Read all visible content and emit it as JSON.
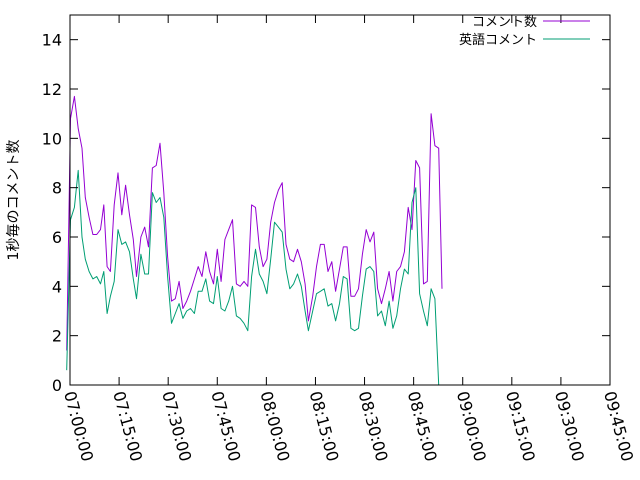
{
  "chart_data": {
    "type": "line",
    "title": "",
    "ylabel": "1秒毎のコメント数",
    "xlabel": "",
    "ylim": [
      0,
      15
    ],
    "yticks": [
      0,
      2,
      4,
      6,
      8,
      10,
      12,
      14
    ],
    "xlim": [
      "07:00:00",
      "09:45:00"
    ],
    "xticks": [
      "07:00:00",
      "07:15:00",
      "07:30:00",
      "07:45:00",
      "08:00:00",
      "08:15:00",
      "08:30:00",
      "08:45:00",
      "09:00:00",
      "09:15:00",
      "09:30:00",
      "09:45:00"
    ],
    "legend_position": "top-right",
    "grid": false,
    "series": [
      {
        "name": "コメント数",
        "color": "#9400d3",
        "points": [
          [
            "06:59:00",
            1.4
          ],
          [
            "07:00:10",
            10.8
          ],
          [
            "07:01:20",
            11.7
          ],
          [
            "07:02:30",
            10.4
          ],
          [
            "07:03:40",
            9.6
          ],
          [
            "07:04:40",
            7.6
          ],
          [
            "07:05:50",
            6.8
          ],
          [
            "07:07:00",
            6.1
          ],
          [
            "07:08:10",
            6.1
          ],
          [
            "07:09:20",
            6.3
          ],
          [
            "07:10:20",
            7.3
          ],
          [
            "07:11:20",
            4.8
          ],
          [
            "07:12:20",
            4.6
          ],
          [
            "07:13:30",
            7.3
          ],
          [
            "07:14:40",
            8.6
          ],
          [
            "07:15:50",
            6.9
          ],
          [
            "07:17:00",
            8.1
          ],
          [
            "07:18:10",
            6.9
          ],
          [
            "07:19:20",
            5.9
          ],
          [
            "07:20:20",
            4.4
          ],
          [
            "07:21:40",
            6.0
          ],
          [
            "07:22:50",
            6.4
          ],
          [
            "07:24:00",
            5.6
          ],
          [
            "07:25:10",
            8.8
          ],
          [
            "07:26:20",
            8.9
          ],
          [
            "07:27:30",
            9.8
          ],
          [
            "07:28:40",
            7.8
          ],
          [
            "07:29:50",
            5.2
          ],
          [
            "07:31:00",
            3.4
          ],
          [
            "07:32:10",
            3.5
          ],
          [
            "07:33:20",
            4.2
          ],
          [
            "07:34:30",
            3.1
          ],
          [
            "07:35:40",
            3.4
          ],
          [
            "07:36:50",
            3.8
          ],
          [
            "07:38:00",
            4.3
          ],
          [
            "07:39:10",
            4.8
          ],
          [
            "07:40:20",
            4.4
          ],
          [
            "07:41:30",
            5.4
          ],
          [
            "07:42:40",
            4.6
          ],
          [
            "07:43:50",
            4.1
          ],
          [
            "07:45:00",
            5.5
          ],
          [
            "07:46:10",
            4.2
          ],
          [
            "07:47:20",
            5.9
          ],
          [
            "07:48:30",
            6.3
          ],
          [
            "07:49:40",
            6.7
          ],
          [
            "07:50:50",
            4.1
          ],
          [
            "07:52:00",
            4.0
          ],
          [
            "07:53:10",
            4.2
          ],
          [
            "07:54:20",
            4.0
          ],
          [
            "07:55:30",
            7.3
          ],
          [
            "07:56:40",
            7.2
          ],
          [
            "07:57:50",
            5.6
          ],
          [
            "07:59:00",
            4.8
          ],
          [
            "08:00:10",
            5.1
          ],
          [
            "08:01:20",
            6.6
          ],
          [
            "08:02:30",
            7.4
          ],
          [
            "08:03:40",
            7.9
          ],
          [
            "08:04:50",
            8.2
          ],
          [
            "08:06:00",
            5.7
          ],
          [
            "08:07:10",
            5.1
          ],
          [
            "08:08:20",
            5.0
          ],
          [
            "08:09:30",
            5.5
          ],
          [
            "08:10:40",
            5.0
          ],
          [
            "08:11:50",
            4.1
          ],
          [
            "08:12:50",
            2.6
          ],
          [
            "08:14:10",
            3.6
          ],
          [
            "08:15:20",
            4.8
          ],
          [
            "08:16:30",
            5.7
          ],
          [
            "08:17:40",
            5.7
          ],
          [
            "08:18:50",
            4.6
          ],
          [
            "08:20:00",
            5.0
          ],
          [
            "08:21:10",
            3.8
          ],
          [
            "08:22:20",
            4.7
          ],
          [
            "08:23:30",
            5.6
          ],
          [
            "08:24:40",
            5.6
          ],
          [
            "08:25:50",
            3.6
          ],
          [
            "08:27:00",
            3.6
          ],
          [
            "08:28:10",
            3.9
          ],
          [
            "08:29:20",
            5.3
          ],
          [
            "08:30:30",
            6.3
          ],
          [
            "08:31:40",
            5.8
          ],
          [
            "08:32:50",
            6.2
          ],
          [
            "08:34:00",
            3.9
          ],
          [
            "08:35:10",
            3.3
          ],
          [
            "08:36:20",
            3.9
          ],
          [
            "08:37:30",
            4.6
          ],
          [
            "08:38:40",
            3.4
          ],
          [
            "08:39:50",
            4.6
          ],
          [
            "08:41:00",
            4.8
          ],
          [
            "08:42:10",
            5.4
          ],
          [
            "08:43:20",
            7.2
          ],
          [
            "08:44:30",
            6.3
          ],
          [
            "08:45:40",
            9.1
          ],
          [
            "08:46:50",
            8.8
          ],
          [
            "08:48:00",
            4.1
          ],
          [
            "08:49:10",
            4.2
          ],
          [
            "08:50:20",
            11.0
          ],
          [
            "08:51:30",
            9.7
          ],
          [
            "08:52:40",
            9.6
          ],
          [
            "08:53:40",
            3.9
          ]
        ]
      },
      {
        "name": "英語コメント",
        "color": "#009e73",
        "points": [
          [
            "06:59:00",
            0.6
          ],
          [
            "07:00:10",
            6.7
          ],
          [
            "07:01:20",
            7.2
          ],
          [
            "07:02:30",
            8.7
          ],
          [
            "07:03:40",
            6.0
          ],
          [
            "07:04:40",
            5.1
          ],
          [
            "07:05:50",
            4.6
          ],
          [
            "07:07:00",
            4.3
          ],
          [
            "07:08:10",
            4.4
          ],
          [
            "07:09:20",
            4.1
          ],
          [
            "07:10:20",
            4.6
          ],
          [
            "07:11:20",
            2.9
          ],
          [
            "07:12:20",
            3.6
          ],
          [
            "07:13:30",
            4.2
          ],
          [
            "07:14:40",
            6.3
          ],
          [
            "07:15:50",
            5.7
          ],
          [
            "07:17:00",
            5.8
          ],
          [
            "07:18:10",
            5.4
          ],
          [
            "07:19:20",
            4.3
          ],
          [
            "07:20:20",
            3.5
          ],
          [
            "07:21:40",
            5.3
          ],
          [
            "07:22:50",
            4.5
          ],
          [
            "07:24:00",
            4.5
          ],
          [
            "07:25:10",
            7.8
          ],
          [
            "07:26:20",
            7.4
          ],
          [
            "07:27:30",
            7.6
          ],
          [
            "07:28:40",
            6.8
          ],
          [
            "07:29:50",
            4.4
          ],
          [
            "07:31:00",
            2.5
          ],
          [
            "07:32:10",
            2.9
          ],
          [
            "07:33:20",
            3.3
          ],
          [
            "07:34:30",
            2.7
          ],
          [
            "07:35:40",
            3.0
          ],
          [
            "07:36:50",
            3.1
          ],
          [
            "07:38:00",
            2.9
          ],
          [
            "07:39:10",
            3.8
          ],
          [
            "07:40:20",
            3.8
          ],
          [
            "07:41:30",
            4.3
          ],
          [
            "07:42:40",
            3.4
          ],
          [
            "07:43:50",
            3.3
          ],
          [
            "07:45:00",
            4.4
          ],
          [
            "07:46:10",
            3.1
          ],
          [
            "07:47:20",
            3.0
          ],
          [
            "07:48:30",
            3.4
          ],
          [
            "07:49:40",
            4.0
          ],
          [
            "07:50:50",
            2.8
          ],
          [
            "07:52:00",
            2.7
          ],
          [
            "07:53:10",
            2.5
          ],
          [
            "07:54:20",
            2.2
          ],
          [
            "07:55:30",
            4.4
          ],
          [
            "07:56:40",
            5.5
          ],
          [
            "07:57:50",
            4.5
          ],
          [
            "07:59:00",
            4.2
          ],
          [
            "08:00:10",
            3.7
          ],
          [
            "08:01:20",
            5.1
          ],
          [
            "08:02:30",
            6.6
          ],
          [
            "08:03:40",
            6.4
          ],
          [
            "08:04:50",
            6.2
          ],
          [
            "08:06:00",
            4.7
          ],
          [
            "08:07:10",
            3.9
          ],
          [
            "08:08:20",
            4.1
          ],
          [
            "08:09:30",
            4.5
          ],
          [
            "08:10:40",
            4.0
          ],
          [
            "08:11:50",
            3.0
          ],
          [
            "08:12:50",
            2.2
          ],
          [
            "08:14:10",
            3.0
          ],
          [
            "08:15:20",
            3.7
          ],
          [
            "08:16:30",
            3.8
          ],
          [
            "08:17:40",
            3.9
          ],
          [
            "08:18:50",
            3.2
          ],
          [
            "08:20:00",
            3.3
          ],
          [
            "08:21:10",
            2.6
          ],
          [
            "08:22:20",
            3.3
          ],
          [
            "08:23:30",
            4.4
          ],
          [
            "08:24:40",
            4.3
          ],
          [
            "08:25:50",
            2.3
          ],
          [
            "08:27:00",
            2.2
          ],
          [
            "08:28:10",
            2.3
          ],
          [
            "08:29:20",
            3.6
          ],
          [
            "08:30:30",
            4.7
          ],
          [
            "08:31:40",
            4.8
          ],
          [
            "08:32:50",
            4.6
          ],
          [
            "08:34:00",
            2.8
          ],
          [
            "08:35:10",
            3.0
          ],
          [
            "08:36:20",
            2.4
          ],
          [
            "08:37:30",
            3.4
          ],
          [
            "08:38:40",
            2.3
          ],
          [
            "08:39:50",
            2.8
          ],
          [
            "08:41:00",
            3.9
          ],
          [
            "08:42:10",
            4.7
          ],
          [
            "08:43:20",
            4.5
          ],
          [
            "08:44:30",
            7.4
          ],
          [
            "08:45:40",
            8.0
          ],
          [
            "08:46:50",
            3.7
          ],
          [
            "08:48:00",
            3.0
          ],
          [
            "08:49:10",
            2.4
          ],
          [
            "08:50:20",
            3.9
          ],
          [
            "08:51:30",
            3.5
          ],
          [
            "08:52:40",
            0.0
          ]
        ]
      }
    ]
  }
}
